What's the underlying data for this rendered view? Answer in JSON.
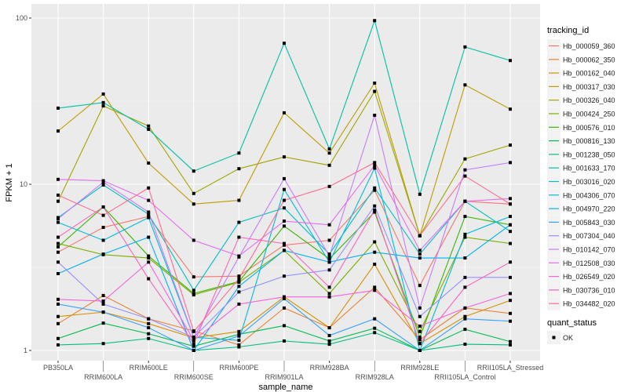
{
  "chart_data": {
    "type": "line",
    "xlabel": "sample_name",
    "ylabel": "FPKM + 1",
    "y_scale": "log10",
    "ylim": [
      0.95,
      120
    ],
    "y_ticks": [
      1,
      10,
      100
    ],
    "y_tick_labels": [
      "1",
      "10",
      "100"
    ],
    "grid": true,
    "legend_position": "right",
    "categories": [
      "PB350LA",
      "RRIM600LA",
      "RRIM600LE",
      "RRIM600SE",
      "RRIM600PE",
      "RRIM901LA",
      "RRIM928BA",
      "RRIM928LA",
      "RRIM928LE",
      "RRII105LA_Control",
      "RRII105LA_Stressed"
    ],
    "legend_title": "tracking_id",
    "shape_legend_title": "quant_status",
    "shape_legend_items": [
      "OK"
    ],
    "series": [
      {
        "name": "Hb_000059_360",
        "color": "#F8766D",
        "values": [
          3.9,
          5.5,
          6.4,
          2.77,
          2.8,
          4.3,
          4.6,
          9.2,
          2.46,
          7.9,
          7.6
        ]
      },
      {
        "name": "Hb_000062_350",
        "color": "#EA8331",
        "values": [
          1.45,
          2.14,
          1.55,
          1.31,
          1.08,
          1.8,
          1.37,
          2.4,
          1.16,
          1.8,
          1.67
        ]
      },
      {
        "name": "Hb_000162_040",
        "color": "#D89000",
        "values": [
          1.6,
          1.7,
          1.45,
          1.19,
          1.3,
          2.1,
          1.37,
          3.3,
          1.1,
          1.6,
          2.0
        ]
      },
      {
        "name": "Hb_000317_030",
        "color": "#C09B00",
        "values": [
          20.9,
          34.9,
          13.4,
          7.6,
          8.0,
          26.9,
          15.4,
          40.6,
          4.9,
          39.6,
          28.3
        ]
      },
      {
        "name": "Hb_000326_040",
        "color": "#A3A500",
        "values": [
          7.9,
          29.6,
          22.4,
          8.8,
          12.4,
          14.6,
          13.0,
          36.2,
          4.9,
          14.2,
          17.2
        ]
      },
      {
        "name": "Hb_000424_250",
        "color": "#7CAE00",
        "values": [
          4.4,
          3.77,
          3.6,
          2.16,
          2.57,
          4.0,
          2.2,
          4.5,
          1.3,
          4.8,
          4.4
        ]
      },
      {
        "name": "Hb_000576_010",
        "color": "#39B600",
        "values": [
          4.2,
          7.3,
          3.7,
          2.2,
          2.6,
          5.6,
          3.56,
          6.8,
          1.2,
          6.4,
          5.7
        ]
      },
      {
        "name": "Hb_000816_130",
        "color": "#00BB4E",
        "values": [
          1.18,
          1.46,
          1.26,
          1.06,
          1.25,
          1.41,
          1.14,
          1.36,
          1.0,
          1.34,
          1.13
        ]
      },
      {
        "name": "Hb_001238_050",
        "color": "#00BF7D",
        "values": [
          1.08,
          1.1,
          1.18,
          1.0,
          1.05,
          1.14,
          1.09,
          1.28,
          1.0,
          1.09,
          1.08
        ]
      },
      {
        "name": "Hb_001633_170",
        "color": "#00C1A3",
        "values": [
          28.7,
          31.0,
          21.4,
          12.0,
          15.4,
          70.5,
          16.3,
          96.5,
          8.7,
          67.0,
          55.5
        ]
      },
      {
        "name": "Hb_003016_020",
        "color": "#00BFC4",
        "values": [
          6.3,
          9.9,
          6.6,
          2.3,
          5.9,
          7.2,
          3.8,
          9.5,
          3.8,
          7.9,
          5.2
        ]
      },
      {
        "name": "Hb_004306_070",
        "color": "#00BAE0",
        "values": [
          5.9,
          4.6,
          6.3,
          1.2,
          1.15,
          9.3,
          3.4,
          12.5,
          1.0,
          5.0,
          6.4
        ]
      },
      {
        "name": "Hb_004970_220",
        "color": "#00B0F6",
        "values": [
          2.9,
          3.8,
          4.8,
          1.0,
          2.43,
          4.0,
          3.4,
          3.9,
          3.6,
          3.6,
          5.7
        ]
      },
      {
        "name": "Hb_005843_030",
        "color": "#35A2FF",
        "values": [
          1.9,
          1.7,
          1.37,
          1.0,
          1.22,
          2.05,
          1.23,
          1.55,
          1.0,
          1.55,
          1.5
        ]
      },
      {
        "name": "Hb_007304_040",
        "color": "#9590FF",
        "values": [
          3.4,
          1.9,
          1.55,
          1.2,
          2.25,
          2.8,
          3.05,
          7.4,
          1.6,
          2.75,
          2.75
        ]
      },
      {
        "name": "Hb_010142_070",
        "color": "#C77CFF",
        "values": [
          6.2,
          10.3,
          6.8,
          1.2,
          3.65,
          10.8,
          3.7,
          26.0,
          1.8,
          12.2,
          13.5
        ]
      },
      {
        "name": "Hb_012508_030",
        "color": "#E76BF3",
        "values": [
          10.7,
          10.5,
          8.0,
          4.6,
          3.7,
          6.0,
          5.7,
          13.0,
          4.0,
          7.9,
          8.2
        ]
      },
      {
        "name": "Hb_026549_020",
        "color": "#FA62DB",
        "values": [
          2.03,
          1.98,
          3.4,
          1.15,
          1.9,
          2.1,
          2.1,
          2.3,
          1.4,
          1.8,
          2.2
        ]
      },
      {
        "name": "Hb_030736_010",
        "color": "#FF62BC",
        "values": [
          4.8,
          7.3,
          2.7,
          1.1,
          4.8,
          4.4,
          2.4,
          7.0,
          1.1,
          2.4,
          3.4
        ]
      },
      {
        "name": "Hb_034482_020",
        "color": "#FF6C91",
        "values": [
          8.6,
          6.5,
          9.5,
          1.3,
          2.7,
          8.0,
          9.7,
          13.5,
          4.9,
          11.2,
          7.6
        ]
      }
    ]
  }
}
